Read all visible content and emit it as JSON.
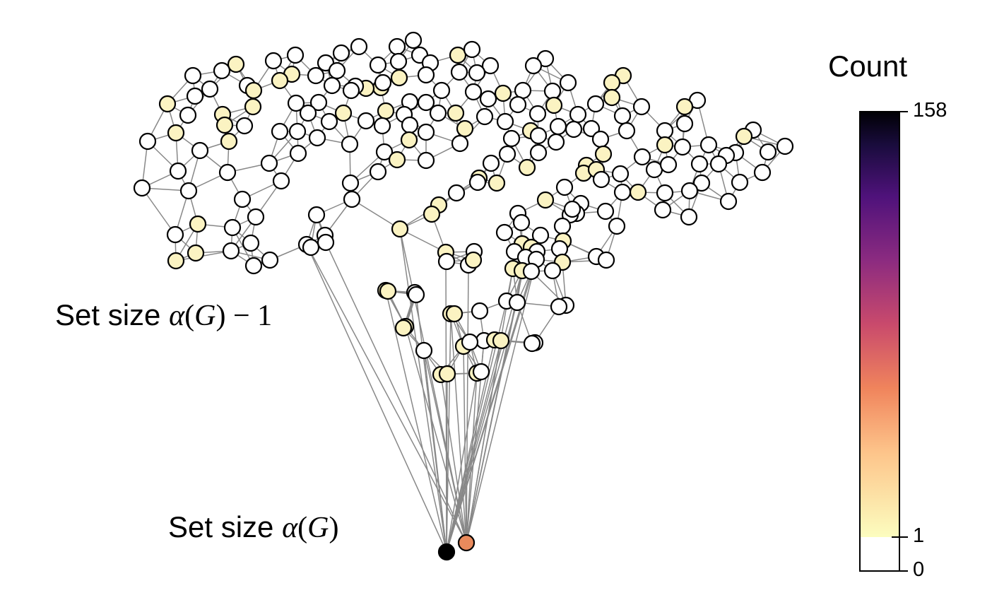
{
  "labels": {
    "top_prefix": "Set size ",
    "top_alpha": "α",
    "top_paren_open": "(",
    "top_g": "G",
    "top_suffix": ") − 1",
    "bottom_prefix": "Set size ",
    "bottom_alpha": "α",
    "bottom_paren_open": "(",
    "bottom_g": "G",
    "bottom_suffix": ")"
  },
  "colorbar": {
    "title": "Count",
    "tick_max": "158",
    "tick_one": "1",
    "tick_zero": "0",
    "colors": {
      "zero": "#ffffff",
      "low": "#fcfdbf",
      "mid_low": "#fc8961",
      "mid": "#b73779",
      "mid_high": "#51127c",
      "high": "#000004"
    }
  },
  "node_colors": {
    "zero": "#ffffff",
    "one": "#fbf3c2",
    "orange": "#e98a5c",
    "black": "#000000"
  },
  "edge_color": "#888888"
}
